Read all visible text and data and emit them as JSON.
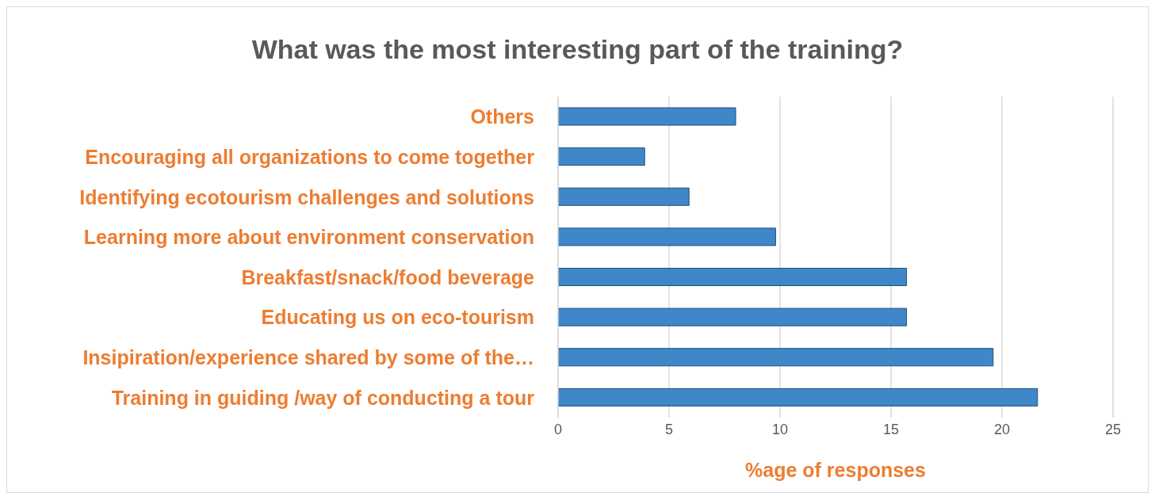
{
  "chart_data": {
    "type": "bar",
    "orientation": "horizontal",
    "title": "What was the most interesting part of the training?",
    "xlabel": "%age of responses",
    "categories": [
      "Others",
      "Encouraging all organizations to come together",
      "Identifying ecotourism challenges and solutions",
      "Learning more about environment conservation",
      "Breakfast/snack/food beverage",
      "Educating us on eco-tourism",
      "Insipiration/experience shared by some of the…",
      "Training in guiding /way of conducting a tour"
    ],
    "values": [
      8,
      3.9,
      5.9,
      9.8,
      15.7,
      15.7,
      19.6,
      21.6
    ],
    "color": "#3f87c9",
    "xlim": [
      0,
      25
    ],
    "xticks": [
      0,
      5,
      10,
      15,
      20,
      25
    ],
    "grid": "x"
  }
}
